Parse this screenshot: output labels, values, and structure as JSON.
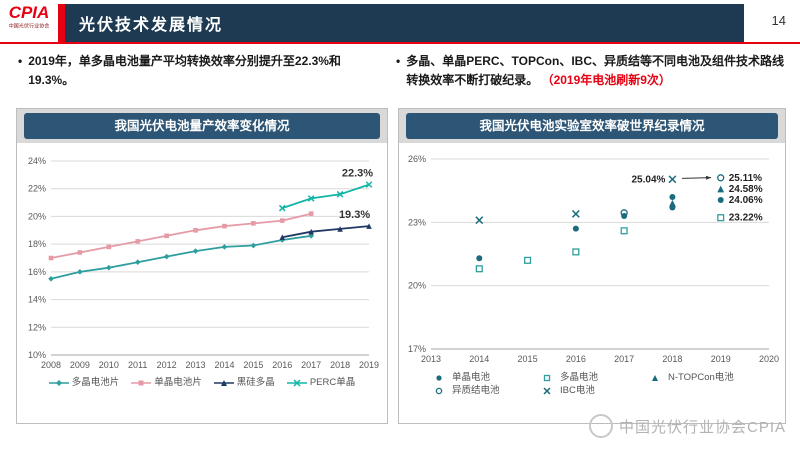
{
  "page": {
    "logo_text": "CPIA",
    "logo_subtext": "中国光伏行业协会",
    "title": "光伏技术发展情况",
    "page_number": "14",
    "watermark": "中国光伏行业协会CPIA"
  },
  "bullets": {
    "left": "2019年，单多晶电池量产平均转换效率分别提升至22.3%和19.3%。",
    "right_main": "多晶、单晶PERC、TOPCon、IBC、异质结等不同电池及组件技术路线转换效率不断打破纪录。",
    "right_highlight": "（2019年电池刷新9次）"
  },
  "colors": {
    "header_navy": "#1d3a52",
    "chart_title_navy": "#2d5575",
    "accent_red": "#e60012",
    "grid": "#d9d9d9",
    "axis_text": "#595959",
    "teal": "#2e9e9e",
    "pink": "#e69aa6",
    "navy_line": "#1f3864",
    "perc_green": "#12b5a5",
    "dark_teal": "#1a6b7e"
  },
  "chart_data": [
    {
      "type": "line",
      "title": "我国光伏电池量产效率变化情况",
      "xlim": [
        2008,
        2019
      ],
      "xticks": [
        2008,
        2009,
        2010,
        2011,
        2012,
        2013,
        2014,
        2015,
        2016,
        2017,
        2018,
        2019
      ],
      "ylim": [
        10,
        24
      ],
      "ytick_step": 2,
      "series": [
        {
          "name": "多晶电池片",
          "color": "#2e9e9e",
          "marker": "diamond",
          "points": [
            [
              2008,
              15.5
            ],
            [
              2009,
              16.0
            ],
            [
              2010,
              16.3
            ],
            [
              2011,
              16.7
            ],
            [
              2012,
              17.1
            ],
            [
              2013,
              17.5
            ],
            [
              2014,
              17.8
            ],
            [
              2015,
              17.9
            ],
            [
              2016,
              18.3
            ],
            [
              2017,
              18.6
            ]
          ]
        },
        {
          "name": "单晶电池片",
          "color": "#e69aa6",
          "marker": "square",
          "points": [
            [
              2008,
              17.0
            ],
            [
              2009,
              17.4
            ],
            [
              2010,
              17.8
            ],
            [
              2011,
              18.2
            ],
            [
              2012,
              18.6
            ],
            [
              2013,
              19.0
            ],
            [
              2014,
              19.3
            ],
            [
              2015,
              19.5
            ],
            [
              2016,
              19.7
            ],
            [
              2017,
              20.2
            ]
          ]
        },
        {
          "name": "黑硅多晶",
          "color": "#1f3864",
          "marker": "triangle",
          "points": [
            [
              2016,
              18.5
            ],
            [
              2017,
              18.9
            ],
            [
              2018,
              19.1
            ],
            [
              2019,
              19.3
            ]
          ],
          "label": {
            "text": "19.3%",
            "x": 2018.5,
            "y": 19.45
          }
        },
        {
          "name": "PERC单晶",
          "color": "#12b5a5",
          "marker": "x",
          "points": [
            [
              2016,
              20.6
            ],
            [
              2017,
              21.3
            ],
            [
              2018,
              21.6
            ],
            [
              2019,
              22.3
            ]
          ],
          "label": {
            "text": "22.3%",
            "x": 2018.6,
            "y": 22.45
          }
        }
      ]
    },
    {
      "type": "scatter",
      "title": "我国光伏电池实验室效率破世界纪录情况",
      "xlim": [
        2013,
        2020
      ],
      "xticks": [
        2013,
        2014,
        2015,
        2016,
        2017,
        2018,
        2019,
        2020
      ],
      "ylim": [
        17,
        26
      ],
      "ytick_step": 3,
      "series": [
        {
          "name": "单晶电池",
          "color": "#1a6b7e",
          "marker": "circle",
          "points": [
            [
              2014,
              21.3
            ],
            [
              2016,
              22.7
            ],
            [
              2017,
              23.3
            ],
            [
              2018,
              23.7
            ],
            [
              2018,
              24.2
            ],
            [
              2019,
              24.06
            ]
          ]
        },
        {
          "name": "多晶电池",
          "color": "#2e9e9e",
          "marker": "square-hollow",
          "points": [
            [
              2014,
              20.8
            ],
            [
              2015,
              21.2
            ],
            [
              2016,
              21.6
            ],
            [
              2017,
              22.6
            ],
            [
              2019,
              23.22
            ]
          ]
        },
        {
          "name": "N-TOPCon电池",
          "color": "#1a6b7e",
          "marker": "triangle",
          "points": [
            [
              2018,
              23.9
            ],
            [
              2019,
              24.58
            ]
          ]
        },
        {
          "name": "异质结电池",
          "color": "#1a6b7e",
          "marker": "circle-hollow",
          "points": [
            [
              2017,
              23.45
            ],
            [
              2019,
              25.11
            ]
          ]
        },
        {
          "name": "IBC电池",
          "color": "#1a6b7e",
          "marker": "x",
          "points": [
            [
              2014,
              23.1
            ],
            [
              2016,
              23.4
            ],
            [
              2018,
              25.04
            ]
          ]
        }
      ],
      "annotations": [
        {
          "text": "25.04%",
          "x": 2018,
          "y": 25.04,
          "anchor": "end",
          "dx": -7
        },
        {
          "text": "25.11%",
          "x": 2019,
          "y": 25.11,
          "anchor": "start",
          "dx": 8
        },
        {
          "text": "24.58%",
          "x": 2019,
          "y": 24.58,
          "anchor": "start",
          "dx": 8
        },
        {
          "text": "24.06%",
          "x": 2019,
          "y": 24.06,
          "anchor": "start",
          "dx": 8
        },
        {
          "text": "23.22%",
          "x": 2019,
          "y": 23.22,
          "anchor": "start",
          "dx": 8
        }
      ],
      "arrow": {
        "x1": 2018.2,
        "y1": 25.08,
        "x2": 2018.8,
        "y2": 25.12
      }
    }
  ]
}
